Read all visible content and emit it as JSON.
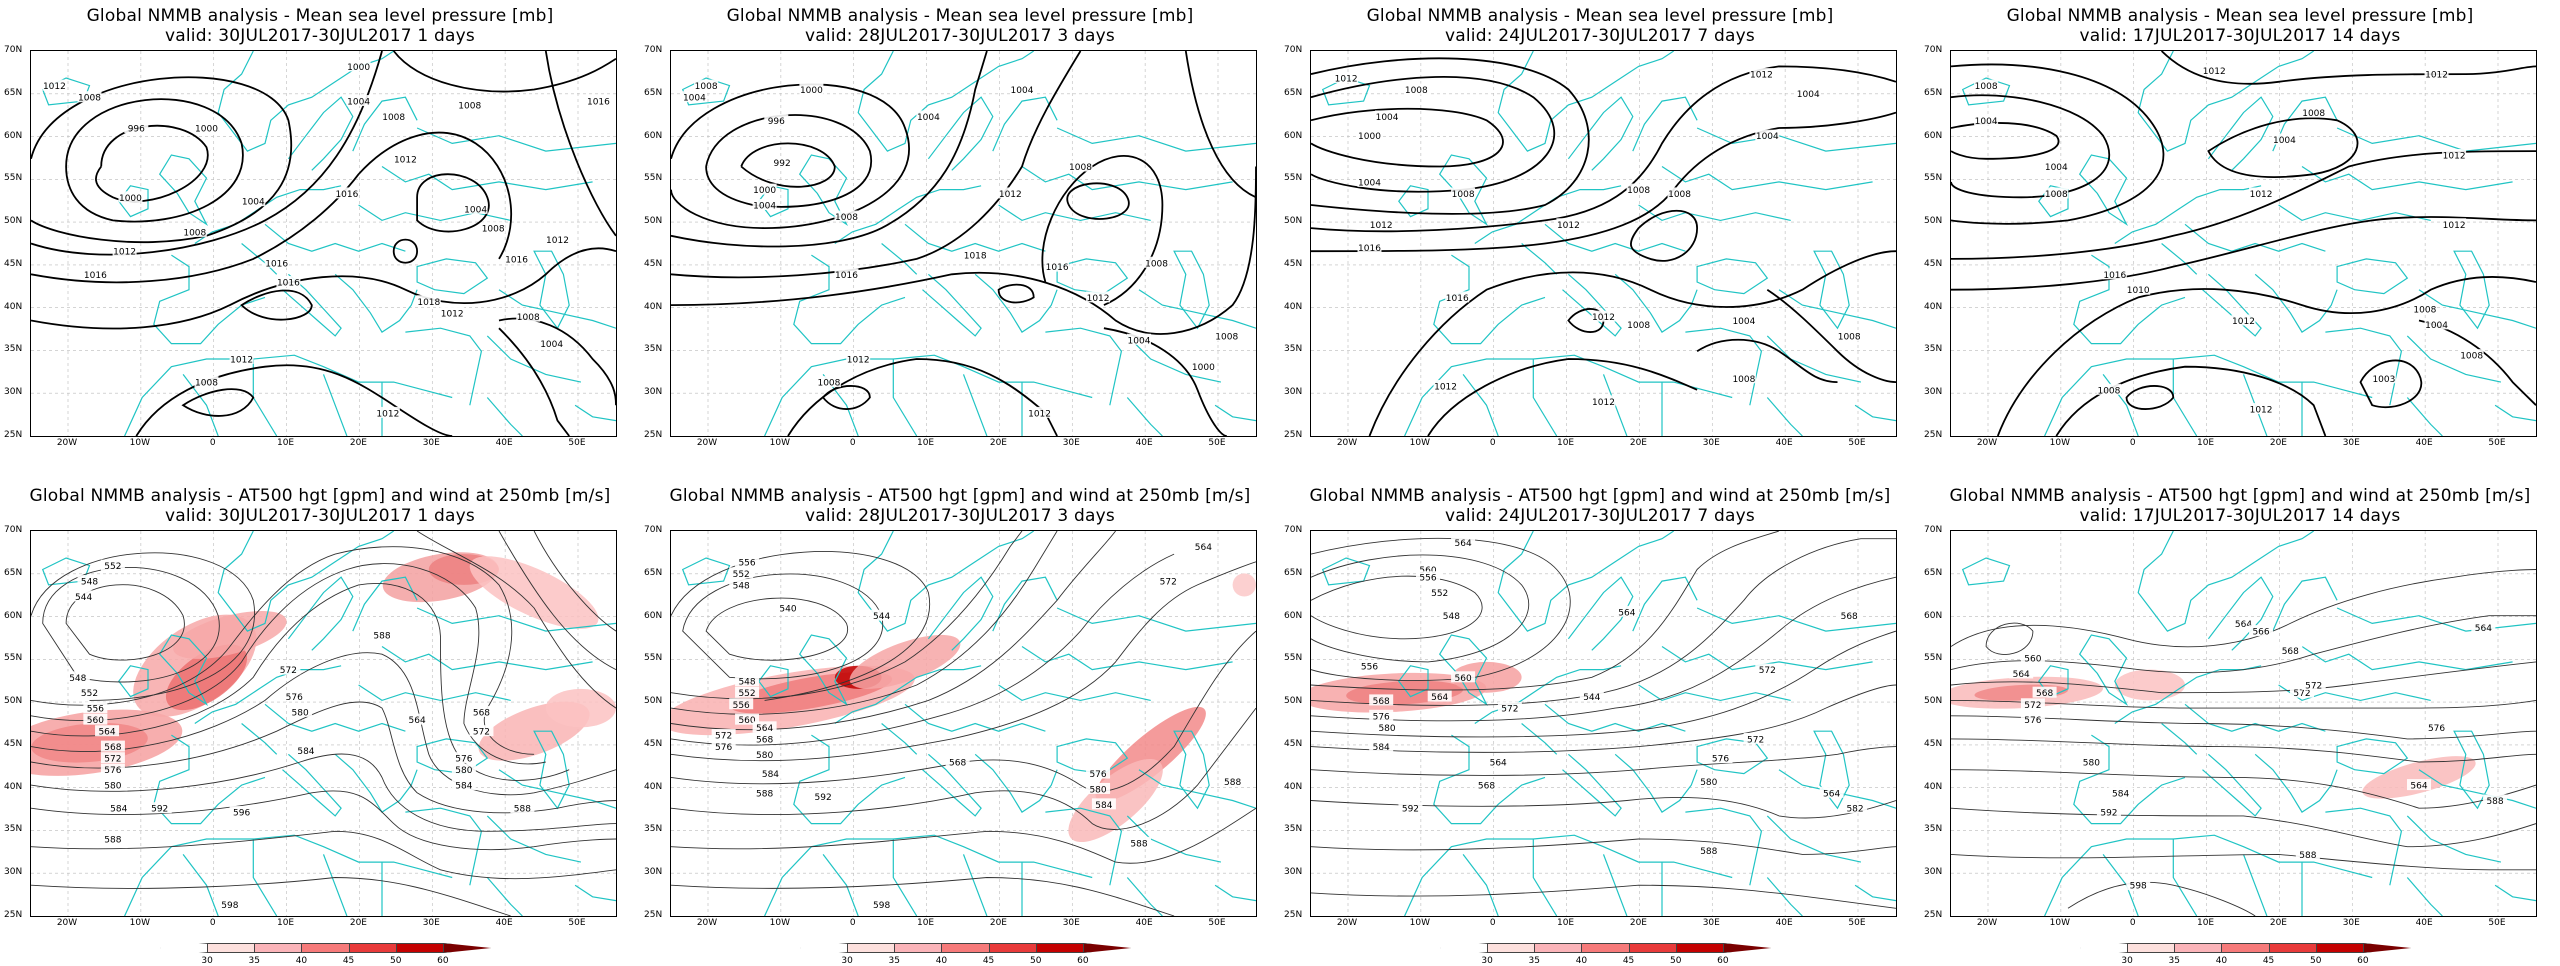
{
  "panels": [
    {
      "id": "slp1",
      "title": "Global NMMB analysis - Mean sea level pressure [mb]",
      "valid": "valid: 30JUL2017-30JUL2017   1 days",
      "type": "slp"
    },
    {
      "id": "slp3",
      "title": "Global NMMB analysis - Mean sea level pressure [mb]",
      "valid": "valid: 28JUL2017-30JUL2017   3 days",
      "type": "slp"
    },
    {
      "id": "slp7",
      "title": "Global NMMB analysis - Mean sea level pressure [mb]",
      "valid": "valid: 24JUL2017-30JUL2017   7 days",
      "type": "slp"
    },
    {
      "id": "slp14",
      "title": "Global NMMB analysis - Mean sea level pressure [mb]",
      "valid": "valid: 17JUL2017-30JUL2017   14 days",
      "type": "slp"
    },
    {
      "id": "hgt1",
      "title": "Global NMMB analysis - AT500 hgt [gpm] and wind at 250mb [m/s]",
      "valid": "valid: 30JUL2017-30JUL2017   1 days",
      "type": "hgt"
    },
    {
      "id": "hgt3",
      "title": "Global NMMB analysis - AT500 hgt [gpm] and wind at 250mb [m/s]",
      "valid": "valid: 28JUL2017-30JUL2017   3 days",
      "type": "hgt"
    },
    {
      "id": "hgt7",
      "title": "Global NMMB analysis - AT500 hgt [gpm] and wind at 250mb [m/s]",
      "valid": "valid: 24JUL2017-30JUL2017   7 days",
      "type": "hgt"
    },
    {
      "id": "hgt14",
      "title": "Global NMMB analysis - AT500 hgt [gpm] and wind at 250mb [m/s]",
      "valid": "valid: 17JUL2017-30JUL2017   14 days",
      "type": "hgt"
    }
  ],
  "lat_labels": [
    "70N",
    "65N",
    "60N",
    "55N",
    "50N",
    "45N",
    "40N",
    "35N",
    "30N",
    "25N"
  ],
  "lon_labels": [
    "20W",
    "10W",
    "0",
    "10E",
    "20E",
    "30E",
    "40E",
    "50E"
  ],
  "colorbar": {
    "ticks": [
      "30",
      "35",
      "40",
      "45",
      "50",
      "60"
    ],
    "colors": [
      "#ffffff",
      "#fde0dd",
      "#fbb4b9",
      "#f77a7a",
      "#e83a3a",
      "#c40000",
      "#7a0000"
    ]
  },
  "slp_labels": {
    "slp1": [
      [
        "1012",
        0.04,
        0.09
      ],
      [
        "1008",
        0.1,
        0.12
      ],
      [
        "1000",
        0.56,
        0.04
      ],
      [
        "1004",
        0.56,
        0.13
      ],
      [
        "1008",
        0.62,
        0.17
      ],
      [
        "1008",
        0.75,
        0.14
      ],
      [
        "1016",
        0.97,
        0.13
      ],
      [
        "996",
        0.18,
        0.2
      ],
      [
        "1000",
        0.3,
        0.2
      ],
      [
        "1004",
        0.38,
        0.39
      ],
      [
        "1000",
        0.17,
        0.38
      ],
      [
        "1008",
        0.28,
        0.47
      ],
      [
        "1012",
        0.64,
        0.28
      ],
      [
        "1016",
        0.54,
        0.37
      ],
      [
        "1004",
        0.76,
        0.41
      ],
      [
        "1008",
        0.79,
        0.46
      ],
      [
        "1012",
        0.9,
        0.49
      ],
      [
        "1016",
        0.83,
        0.54
      ],
      [
        "1012",
        0.16,
        0.52
      ],
      [
        "1016",
        0.11,
        0.58
      ],
      [
        "1016",
        0.42,
        0.55
      ],
      [
        "1016",
        0.44,
        0.6
      ],
      [
        "1018",
        0.68,
        0.65
      ],
      [
        "1012",
        0.72,
        0.68
      ],
      [
        "1008",
        0.85,
        0.69
      ],
      [
        "1004",
        0.89,
        0.76
      ],
      [
        "1012",
        0.36,
        0.8
      ],
      [
        "1008",
        0.3,
        0.86
      ],
      [
        "1012",
        0.61,
        0.94
      ]
    ],
    "slp3": [
      [
        "1008",
        0.06,
        0.09
      ],
      [
        "1004",
        0.04,
        0.12
      ],
      [
        "1000",
        0.24,
        0.1
      ],
      [
        "996",
        0.18,
        0.18
      ],
      [
        "992",
        0.19,
        0.29
      ],
      [
        "1000",
        0.16,
        0.36
      ],
      [
        "1004",
        0.16,
        0.4
      ],
      [
        "1008",
        0.3,
        0.43
      ],
      [
        "1004",
        0.44,
        0.17
      ],
      [
        "1004",
        0.6,
        0.1
      ],
      [
        "1008",
        0.7,
        0.3
      ],
      [
        "1012",
        0.58,
        0.37
      ],
      [
        "1008",
        0.83,
        0.55
      ],
      [
        "1016",
        0.3,
        0.58
      ],
      [
        "1018",
        0.52,
        0.53
      ],
      [
        "1016",
        0.66,
        0.56
      ],
      [
        "1012",
        0.73,
        0.64
      ],
      [
        "1004",
        0.8,
        0.75
      ],
      [
        "1008",
        0.95,
        0.74
      ],
      [
        "1000",
        0.91,
        0.82
      ],
      [
        "1012",
        0.32,
        0.8
      ],
      [
        "1008",
        0.27,
        0.86
      ],
      [
        "1012",
        0.63,
        0.94
      ]
    ],
    "slp7": [
      [
        "1012",
        0.06,
        0.07
      ],
      [
        "1008",
        0.18,
        0.1
      ],
      [
        "1004",
        0.13,
        0.17
      ],
      [
        "1000",
        0.1,
        0.22
      ],
      [
        "1004",
        0.1,
        0.34
      ],
      [
        "1008",
        0.26,
        0.37
      ],
      [
        "1012",
        0.12,
        0.45
      ],
      [
        "1016",
        0.1,
        0.51
      ],
      [
        "1012",
        0.44,
        0.45
      ],
      [
        "1008",
        0.56,
        0.36
      ],
      [
        "1008",
        0.63,
        0.37
      ],
      [
        "1004",
        0.78,
        0.22
      ],
      [
        "1012",
        0.77,
        0.06
      ],
      [
        "1004",
        0.85,
        0.11
      ],
      [
        "1016",
        0.25,
        0.64
      ],
      [
        "1012",
        0.5,
        0.69
      ],
      [
        "1008",
        0.56,
        0.71
      ],
      [
        "1004",
        0.74,
        0.7
      ],
      [
        "1008",
        0.92,
        0.74
      ],
      [
        "1008",
        0.74,
        0.85
      ],
      [
        "1012",
        0.23,
        0.87
      ],
      [
        "1012",
        0.5,
        0.91
      ]
    ],
    "slp14": [
      [
        "1008",
        0.06,
        0.09
      ],
      [
        "1004",
        0.06,
        0.18
      ],
      [
        "1004",
        0.18,
        0.3
      ],
      [
        "1008",
        0.18,
        0.37
      ],
      [
        "1012",
        0.45,
        0.05
      ],
      [
        "1012",
        0.83,
        0.06
      ],
      [
        "1008",
        0.62,
        0.16
      ],
      [
        "1004",
        0.57,
        0.23
      ],
      [
        "1012",
        0.86,
        0.27
      ],
      [
        "1012",
        0.53,
        0.37
      ],
      [
        "1012",
        0.86,
        0.45
      ],
      [
        "1016",
        0.28,
        0.58
      ],
      [
        "1010",
        0.32,
        0.62
      ],
      [
        "1012",
        0.5,
        0.7
      ],
      [
        "1008",
        0.81,
        0.67
      ],
      [
        "1004",
        0.83,
        0.71
      ],
      [
        "1008",
        0.89,
        0.79
      ],
      [
        "1003",
        0.74,
        0.85
      ],
      [
        "1008",
        0.27,
        0.88
      ],
      [
        "1012",
        0.53,
        0.93
      ]
    ]
  },
  "hgt_labels": {
    "hgt1": [
      [
        "552",
        0.14,
        0.09
      ],
      [
        "548",
        0.1,
        0.13
      ],
      [
        "544",
        0.09,
        0.17
      ],
      [
        "548",
        0.08,
        0.38
      ],
      [
        "552",
        0.1,
        0.42
      ],
      [
        "556",
        0.11,
        0.46
      ],
      [
        "560",
        0.11,
        0.49
      ],
      [
        "564",
        0.13,
        0.52
      ],
      [
        "568",
        0.14,
        0.56
      ],
      [
        "572",
        0.14,
        0.59
      ],
      [
        "576",
        0.14,
        0.62
      ],
      [
        "580",
        0.14,
        0.66
      ],
      [
        "584",
        0.15,
        0.72
      ],
      [
        "588",
        0.14,
        0.8
      ],
      [
        "592",
        0.22,
        0.72
      ],
      [
        "596",
        0.36,
        0.73
      ],
      [
        "572",
        0.44,
        0.36
      ],
      [
        "576",
        0.45,
        0.43
      ],
      [
        "580",
        0.46,
        0.47
      ],
      [
        "584",
        0.47,
        0.57
      ],
      [
        "588",
        0.6,
        0.27
      ],
      [
        "564",
        0.66,
        0.49
      ],
      [
        "568",
        0.77,
        0.47
      ],
      [
        "572",
        0.77,
        0.52
      ],
      [
        "576",
        0.74,
        0.59
      ],
      [
        "580",
        0.74,
        0.62
      ],
      [
        "584",
        0.74,
        0.66
      ],
      [
        "588",
        0.84,
        0.72
      ],
      [
        "598",
        0.34,
        0.97
      ]
    ],
    "hgt3": [
      [
        "556",
        0.13,
        0.08
      ],
      [
        "552",
        0.12,
        0.11
      ],
      [
        "548",
        0.12,
        0.14
      ],
      [
        "540",
        0.2,
        0.2
      ],
      [
        "544",
        0.36,
        0.22
      ],
      [
        "548",
        0.13,
        0.39
      ],
      [
        "552",
        0.13,
        0.42
      ],
      [
        "556",
        0.12,
        0.45
      ],
      [
        "560",
        0.13,
        0.49
      ],
      [
        "564",
        0.16,
        0.51
      ],
      [
        "568",
        0.16,
        0.54
      ],
      [
        "572",
        0.09,
        0.53
      ],
      [
        "576",
        0.09,
        0.56
      ],
      [
        "580",
        0.16,
        0.58
      ],
      [
        "584",
        0.17,
        0.63
      ],
      [
        "588",
        0.16,
        0.68
      ],
      [
        "592",
        0.26,
        0.69
      ],
      [
        "568",
        0.49,
        0.6
      ],
      [
        "564",
        0.91,
        0.04
      ],
      [
        "572",
        0.85,
        0.13
      ],
      [
        "576",
        0.73,
        0.63
      ],
      [
        "580",
        0.73,
        0.67
      ],
      [
        "584",
        0.74,
        0.71
      ],
      [
        "588",
        0.96,
        0.65
      ],
      [
        "588",
        0.8,
        0.81
      ],
      [
        "598",
        0.36,
        0.97
      ]
    ],
    "hgt7": [
      [
        "564",
        0.26,
        0.03
      ],
      [
        "560",
        0.2,
        0.1
      ],
      [
        "556",
        0.2,
        0.12
      ],
      [
        "552",
        0.22,
        0.16
      ],
      [
        "548",
        0.24,
        0.22
      ],
      [
        "556",
        0.1,
        0.35
      ],
      [
        "560",
        0.26,
        0.38
      ],
      [
        "564",
        0.22,
        0.43
      ],
      [
        "568",
        0.12,
        0.44
      ],
      [
        "576",
        0.12,
        0.48
      ],
      [
        "580",
        0.13,
        0.51
      ],
      [
        "584",
        0.12,
        0.56
      ],
      [
        "572",
        0.34,
        0.46
      ],
      [
        "544",
        0.48,
        0.43
      ],
      [
        "564",
        0.54,
        0.21
      ],
      [
        "568",
        0.92,
        0.22
      ],
      [
        "572",
        0.78,
        0.36
      ],
      [
        "572",
        0.76,
        0.54
      ],
      [
        "564",
        0.32,
        0.6
      ],
      [
        "568",
        0.3,
        0.66
      ],
      [
        "576",
        0.7,
        0.59
      ],
      [
        "580",
        0.68,
        0.65
      ],
      [
        "564",
        0.89,
        0.68
      ],
      [
        "582",
        0.93,
        0.72
      ],
      [
        "588",
        0.68,
        0.83
      ],
      [
        "592",
        0.17,
        0.72
      ]
    ],
    "hgt14": [
      [
        "560",
        0.14,
        0.33
      ],
      [
        "564",
        0.12,
        0.37
      ],
      [
        "568",
        0.16,
        0.42
      ],
      [
        "572",
        0.14,
        0.45
      ],
      [
        "576",
        0.14,
        0.49
      ],
      [
        "564",
        0.5,
        0.24
      ],
      [
        "566",
        0.53,
        0.26
      ],
      [
        "568",
        0.58,
        0.31
      ],
      [
        "572",
        0.6,
        0.42
      ],
      [
        "564",
        0.91,
        0.25
      ],
      [
        "572",
        0.62,
        0.4
      ],
      [
        "576",
        0.83,
        0.51
      ],
      [
        "580",
        0.24,
        0.6
      ],
      [
        "584",
        0.29,
        0.68
      ],
      [
        "564",
        0.8,
        0.66
      ],
      [
        "588",
        0.93,
        0.7
      ],
      [
        "592",
        0.27,
        0.73
      ],
      [
        "588",
        0.61,
        0.84
      ],
      [
        "598",
        0.32,
        0.92
      ]
    ]
  }
}
